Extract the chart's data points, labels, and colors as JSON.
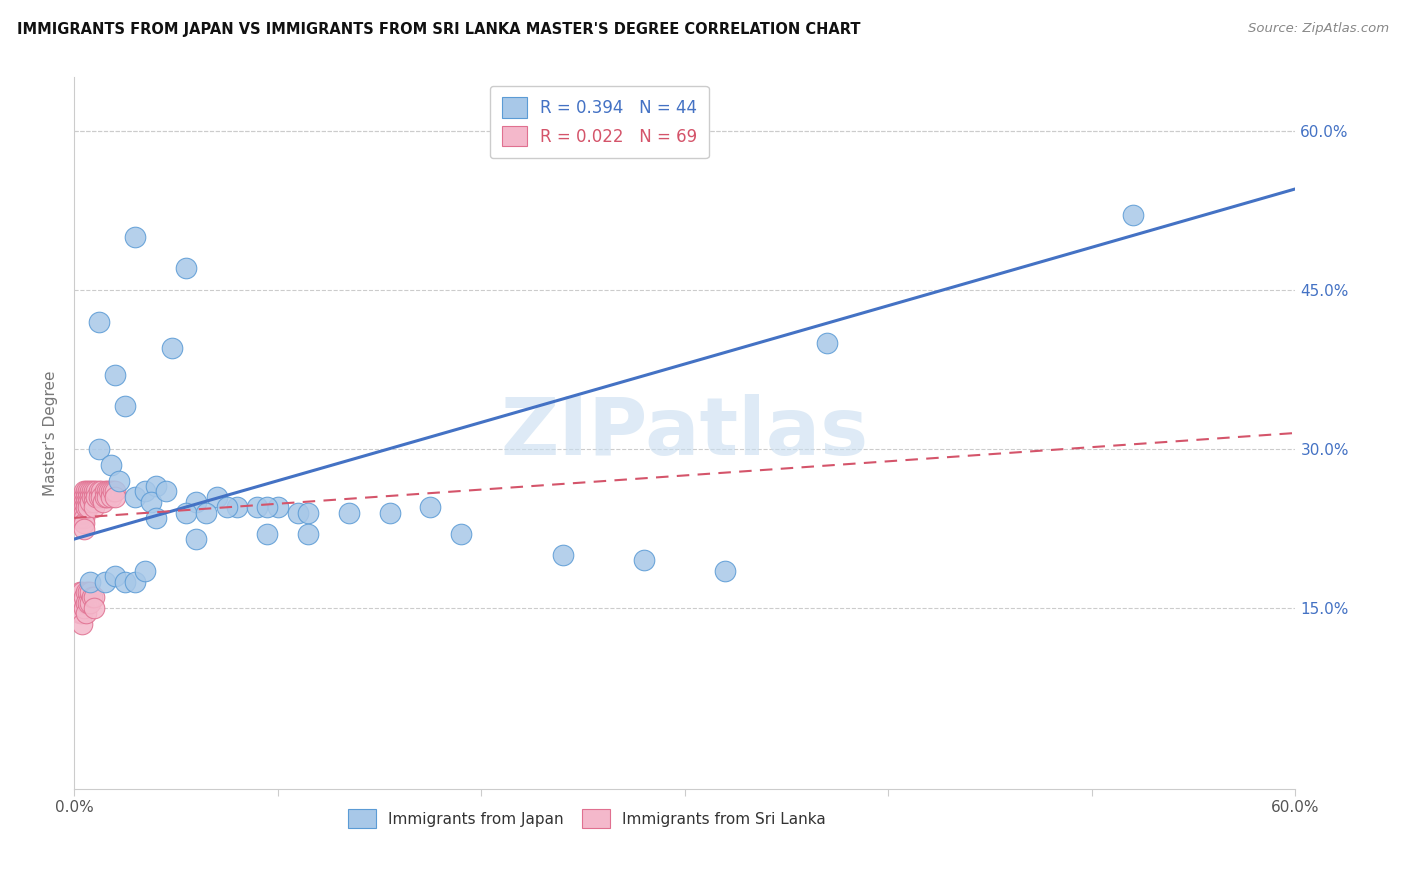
{
  "title": "IMMIGRANTS FROM JAPAN VS IMMIGRANTS FROM SRI LANKA MASTER'S DEGREE CORRELATION CHART",
  "source": "Source: ZipAtlas.com",
  "ylabel": "Master's Degree",
  "xlim": [
    0.0,
    0.6
  ],
  "ylim": [
    -0.02,
    0.65
  ],
  "legend_japan_r": "R = 0.394",
  "legend_japan_n": "N = 44",
  "legend_srilanka_r": "R = 0.022",
  "legend_srilanka_n": "N = 69",
  "japan_color": "#a8c8e8",
  "japan_edge_color": "#5b9bd5",
  "japan_line_color": "#4472c4",
  "srilanka_color": "#f4b8cb",
  "srilanka_edge_color": "#e07090",
  "srilanka_line_color": "#d4546a",
  "watermark": "ZIPatlas",
  "ytick_vals": [
    0.15,
    0.3,
    0.45,
    0.6
  ],
  "japan_line_x0": 0.0,
  "japan_line_y0": 0.215,
  "japan_line_x1": 0.6,
  "japan_line_y1": 0.545,
  "srilanka_line_x0": 0.0,
  "srilanka_line_y0": 0.235,
  "srilanka_line_x1": 0.6,
  "srilanka_line_y1": 0.315,
  "japan_x": [
    0.03,
    0.055,
    0.012,
    0.048,
    0.02,
    0.025,
    0.012,
    0.018,
    0.022,
    0.03,
    0.035,
    0.04,
    0.038,
    0.045,
    0.06,
    0.07,
    0.08,
    0.09,
    0.1,
    0.11,
    0.055,
    0.065,
    0.075,
    0.095,
    0.115,
    0.135,
    0.155,
    0.175,
    0.28,
    0.32,
    0.008,
    0.015,
    0.02,
    0.025,
    0.03,
    0.035,
    0.04,
    0.06,
    0.095,
    0.115,
    0.19,
    0.24,
    0.37,
    0.52
  ],
  "japan_y": [
    0.5,
    0.47,
    0.42,
    0.395,
    0.37,
    0.34,
    0.3,
    0.285,
    0.27,
    0.255,
    0.26,
    0.265,
    0.25,
    0.26,
    0.25,
    0.255,
    0.245,
    0.245,
    0.245,
    0.24,
    0.24,
    0.24,
    0.245,
    0.245,
    0.24,
    0.24,
    0.24,
    0.245,
    0.195,
    0.185,
    0.175,
    0.175,
    0.18,
    0.175,
    0.175,
    0.185,
    0.235,
    0.215,
    0.22,
    0.22,
    0.22,
    0.2,
    0.4,
    0.52
  ],
  "srilanka_x": [
    0.003,
    0.003,
    0.003,
    0.003,
    0.004,
    0.004,
    0.004,
    0.004,
    0.005,
    0.005,
    0.005,
    0.005,
    0.005,
    0.005,
    0.005,
    0.005,
    0.006,
    0.006,
    0.006,
    0.006,
    0.007,
    0.007,
    0.007,
    0.007,
    0.008,
    0.008,
    0.008,
    0.009,
    0.009,
    0.01,
    0.01,
    0.01,
    0.01,
    0.011,
    0.011,
    0.012,
    0.012,
    0.013,
    0.013,
    0.014,
    0.015,
    0.015,
    0.016,
    0.016,
    0.017,
    0.018,
    0.018,
    0.019,
    0.02,
    0.02,
    0.003,
    0.003,
    0.003,
    0.004,
    0.004,
    0.004,
    0.004,
    0.005,
    0.005,
    0.006,
    0.006,
    0.006,
    0.007,
    0.007,
    0.008,
    0.008,
    0.009,
    0.01,
    0.01
  ],
  "srilanka_y": [
    0.25,
    0.245,
    0.24,
    0.235,
    0.255,
    0.25,
    0.245,
    0.24,
    0.26,
    0.255,
    0.25,
    0.245,
    0.24,
    0.235,
    0.23,
    0.225,
    0.26,
    0.255,
    0.25,
    0.245,
    0.26,
    0.255,
    0.25,
    0.245,
    0.26,
    0.255,
    0.25,
    0.26,
    0.255,
    0.26,
    0.255,
    0.25,
    0.245,
    0.26,
    0.255,
    0.26,
    0.255,
    0.26,
    0.255,
    0.25,
    0.26,
    0.255,
    0.26,
    0.255,
    0.26,
    0.26,
    0.255,
    0.26,
    0.26,
    0.255,
    0.165,
    0.155,
    0.145,
    0.165,
    0.155,
    0.145,
    0.135,
    0.16,
    0.15,
    0.165,
    0.155,
    0.145,
    0.165,
    0.155,
    0.165,
    0.155,
    0.16,
    0.16,
    0.15
  ]
}
